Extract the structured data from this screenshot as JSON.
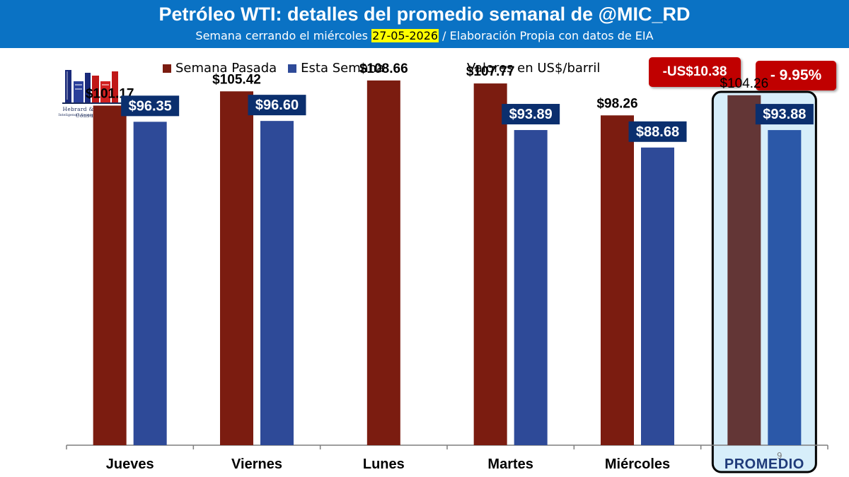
{
  "header": {
    "title": "Petróleo WTI: detalles del promedio semanal de @MIC_RD",
    "subtitle_pre": "Semana cerrando el miércoles ",
    "subtitle_date": "27-05-2026",
    "subtitle_post": " / Elaboración Propia con datos de EIA"
  },
  "logo": {
    "name": "Hebrard & Hebrard Consulting",
    "tagline": "Inteligencia Económica & Comercial"
  },
  "units_note": "Valores en US$/barril",
  "badges": {
    "change_abs": "-US$10.38",
    "change_pct": "- 9.95%"
  },
  "page_number": "9",
  "colors": {
    "header_bg": "#0a72c4",
    "last_week": "#7b1c10",
    "this_week": "#2e4a98",
    "avg_last_week": "#633636",
    "avg_this_week": "#2b58a8",
    "highlight_bg": "#d7eefa",
    "label_box": "#0b2f6e",
    "badge": "#c00000"
  },
  "chart_data": {
    "type": "bar",
    "categories": [
      "Jueves",
      "Viernes",
      "Lunes",
      "Martes",
      "Miércoles",
      "PROMEDIO"
    ],
    "series": [
      {
        "name": "Semana Pasada",
        "values": [
          101.17,
          105.42,
          108.66,
          107.77,
          98.26,
          104.26
        ],
        "labels": [
          "$101.17",
          "$105.42",
          "$108.66",
          "$107.77",
          "$98.26",
          "$104.26"
        ]
      },
      {
        "name": "Esta Semana",
        "values": [
          96.35,
          96.6,
          null,
          93.89,
          88.68,
          93.88
        ],
        "labels": [
          "$96.35",
          "$96.60",
          "",
          "$93.89",
          "$88.68",
          "$93.88"
        ]
      }
    ],
    "highlighted_category": "PROMEDIO",
    "ylim": [
      0,
      120
    ],
    "xlabel": "",
    "ylabel": "",
    "grid": false,
    "legend_position": "top-left"
  }
}
